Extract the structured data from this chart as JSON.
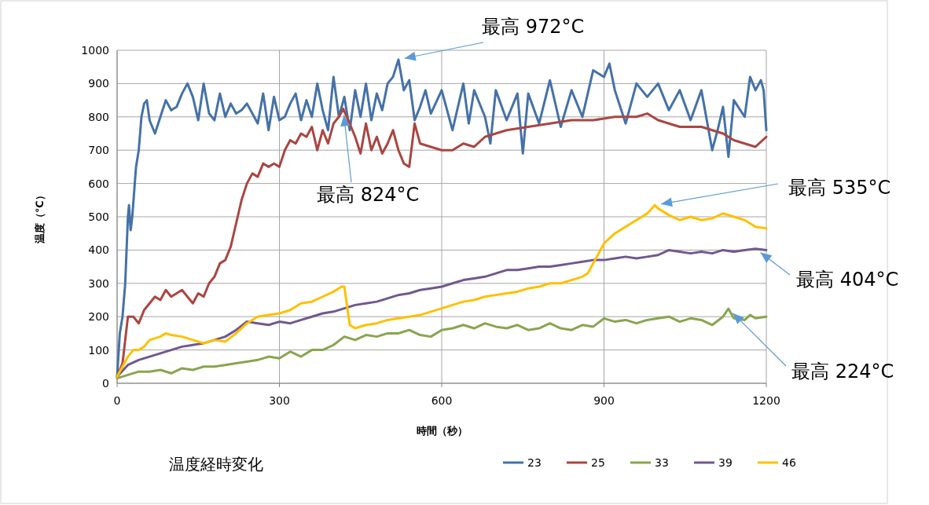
{
  "chart_data": {
    "type": "line",
    "title": "温度経時変化",
    "xlabel": "時間（秒）",
    "ylabel": "温度（℃）",
    "xlim": [
      0,
      1200
    ],
    "xticks": [
      0,
      300,
      600,
      900,
      1200
    ],
    "ylim": [
      0,
      1000
    ],
    "yticks": [
      0,
      100,
      200,
      300,
      400,
      500,
      600,
      700,
      800,
      900,
      1000
    ],
    "grid": true,
    "legend": "bottom",
    "marker": "none",
    "line_style": "solid",
    "series": [
      {
        "name": "23",
        "color": "#4572a7",
        "x": [
          0,
          5,
          10,
          15,
          20,
          22,
          25,
          28,
          35,
          40,
          45,
          50,
          55,
          60,
          70,
          80,
          90,
          100,
          110,
          120,
          130,
          140,
          150,
          160,
          170,
          180,
          190,
          200,
          210,
          220,
          230,
          240,
          250,
          260,
          270,
          280,
          290,
          300,
          310,
          320,
          330,
          340,
          350,
          360,
          370,
          380,
          390,
          400,
          410,
          420,
          430,
          440,
          450,
          460,
          470,
          480,
          490,
          500,
          510,
          520,
          530,
          540,
          550,
          560,
          570,
          580,
          600,
          610,
          620,
          640,
          650,
          660,
          680,
          690,
          700,
          720,
          740,
          750,
          760,
          780,
          800,
          820,
          840,
          860,
          880,
          900,
          910,
          920,
          940,
          960,
          980,
          1000,
          1020,
          1040,
          1060,
          1080,
          1100,
          1110,
          1120,
          1130,
          1140,
          1160,
          1170,
          1180,
          1190,
          1195,
          1200
        ],
        "values": [
          20,
          150,
          200,
          300,
          500,
          535,
          460,
          500,
          650,
          700,
          800,
          840,
          850,
          790,
          750,
          800,
          850,
          820,
          830,
          870,
          900,
          860,
          790,
          900,
          810,
          790,
          870,
          800,
          840,
          810,
          820,
          840,
          810,
          780,
          870,
          760,
          860,
          790,
          800,
          840,
          870,
          790,
          850,
          800,
          900,
          820,
          760,
          920,
          800,
          860,
          760,
          880,
          800,
          900,
          790,
          870,
          820,
          900,
          920,
          972,
          880,
          910,
          790,
          830,
          880,
          810,
          880,
          820,
          760,
          900,
          780,
          880,
          800,
          720,
          880,
          790,
          870,
          690,
          870,
          780,
          910,
          770,
          880,
          800,
          940,
          920,
          960,
          880,
          780,
          900,
          860,
          900,
          820,
          880,
          790,
          880,
          700,
          760,
          830,
          680,
          850,
          800,
          920,
          880,
          910,
          880,
          760
        ]
      },
      {
        "name": "25",
        "color": "#aa4643",
        "x": [
          0,
          10,
          20,
          30,
          40,
          50,
          60,
          70,
          80,
          90,
          100,
          110,
          120,
          130,
          140,
          150,
          160,
          170,
          180,
          190,
          200,
          210,
          220,
          230,
          240,
          250,
          260,
          270,
          280,
          290,
          300,
          310,
          320,
          330,
          340,
          350,
          360,
          370,
          380,
          390,
          400,
          410,
          418,
          430,
          440,
          450,
          460,
          470,
          480,
          490,
          500,
          510,
          520,
          530,
          540,
          550,
          560,
          580,
          600,
          620,
          640,
          660,
          680,
          700,
          720,
          760,
          800,
          840,
          880,
          920,
          960,
          980,
          1000,
          1040,
          1080,
          1120,
          1140,
          1160,
          1180,
          1200
        ],
        "values": [
          20,
          60,
          200,
          200,
          180,
          220,
          240,
          260,
          250,
          280,
          260,
          270,
          280,
          260,
          240,
          270,
          260,
          300,
          320,
          360,
          370,
          410,
          480,
          550,
          600,
          630,
          620,
          660,
          650,
          660,
          650,
          700,
          730,
          720,
          750,
          740,
          770,
          700,
          760,
          720,
          780,
          800,
          824,
          780,
          740,
          690,
          780,
          700,
          740,
          690,
          720,
          760,
          700,
          660,
          650,
          780,
          720,
          710,
          700,
          700,
          720,
          710,
          740,
          750,
          760,
          770,
          780,
          790,
          790,
          800,
          800,
          810,
          790,
          770,
          770,
          750,
          730,
          720,
          710,
          740
        ]
      },
      {
        "name": "33",
        "color": "#89a54e",
        "x": [
          0,
          20,
          40,
          60,
          80,
          100,
          120,
          140,
          160,
          180,
          200,
          220,
          240,
          260,
          280,
          300,
          320,
          340,
          360,
          380,
          400,
          420,
          440,
          460,
          480,
          500,
          520,
          540,
          560,
          580,
          600,
          620,
          640,
          660,
          680,
          700,
          720,
          740,
          760,
          780,
          800,
          820,
          840,
          860,
          880,
          900,
          920,
          940,
          960,
          980,
          1000,
          1020,
          1040,
          1060,
          1080,
          1100,
          1120,
          1130,
          1140,
          1160,
          1170,
          1180,
          1200
        ],
        "values": [
          15,
          25,
          35,
          35,
          40,
          30,
          45,
          40,
          50,
          50,
          55,
          60,
          65,
          70,
          80,
          75,
          95,
          80,
          100,
          100,
          115,
          140,
          130,
          145,
          140,
          150,
          150,
          160,
          145,
          140,
          160,
          165,
          175,
          165,
          180,
          170,
          165,
          175,
          160,
          165,
          180,
          165,
          160,
          175,
          170,
          195,
          185,
          190,
          180,
          190,
          195,
          200,
          185,
          195,
          190,
          175,
          200,
          224,
          195,
          190,
          205,
          195,
          200
        ]
      },
      {
        "name": "39",
        "color": "#71588f",
        "x": [
          0,
          20,
          40,
          60,
          80,
          100,
          120,
          140,
          160,
          180,
          200,
          220,
          240,
          260,
          280,
          300,
          320,
          340,
          360,
          380,
          400,
          420,
          440,
          460,
          480,
          500,
          520,
          540,
          560,
          580,
          600,
          620,
          640,
          660,
          680,
          700,
          720,
          740,
          760,
          780,
          800,
          820,
          840,
          860,
          880,
          900,
          920,
          940,
          960,
          980,
          1000,
          1020,
          1040,
          1060,
          1080,
          1100,
          1120,
          1140,
          1160,
          1180,
          1200
        ],
        "values": [
          20,
          55,
          70,
          80,
          90,
          100,
          110,
          115,
          120,
          130,
          140,
          160,
          185,
          180,
          175,
          185,
          180,
          190,
          200,
          210,
          215,
          225,
          235,
          240,
          245,
          255,
          265,
          270,
          280,
          285,
          290,
          300,
          310,
          315,
          320,
          330,
          340,
          340,
          345,
          350,
          350,
          355,
          360,
          365,
          370,
          370,
          375,
          380,
          375,
          380,
          385,
          400,
          395,
          390,
          395,
          390,
          400,
          395,
          400,
          404,
          400
        ]
      },
      {
        "name": "46",
        "color": "#ffc000",
        "x": [
          0,
          10,
          20,
          30,
          40,
          50,
          60,
          80,
          90,
          100,
          120,
          140,
          160,
          180,
          200,
          220,
          240,
          260,
          280,
          300,
          320,
          340,
          360,
          380,
          400,
          415,
          420,
          430,
          440,
          460,
          480,
          500,
          520,
          540,
          560,
          580,
          600,
          620,
          640,
          660,
          680,
          700,
          720,
          740,
          760,
          780,
          800,
          820,
          840,
          860,
          870,
          880,
          890,
          900,
          920,
          940,
          960,
          980,
          994,
          1000,
          1020,
          1040,
          1060,
          1080,
          1100,
          1120,
          1140,
          1160,
          1180,
          1200
        ],
        "values": [
          20,
          50,
          80,
          100,
          100,
          110,
          130,
          140,
          150,
          145,
          140,
          130,
          120,
          130,
          125,
          150,
          180,
          200,
          205,
          210,
          220,
          240,
          245,
          260,
          275,
          290,
          290,
          175,
          165,
          175,
          180,
          190,
          195,
          200,
          205,
          215,
          225,
          235,
          245,
          250,
          260,
          265,
          270,
          275,
          285,
          290,
          300,
          300,
          310,
          320,
          330,
          360,
          390,
          420,
          450,
          470,
          490,
          510,
          535,
          525,
          505,
          490,
          500,
          490,
          495,
          510,
          500,
          490,
          470,
          465
        ]
      }
    ],
    "annotations": [
      {
        "text": "最高 972°C",
        "x": 520,
        "y": 972
      },
      {
        "text": "最高 824°C",
        "x": 418,
        "y": 824
      },
      {
        "text": "最高 535°C",
        "x": 994,
        "y": 535
      },
      {
        "text": "最高 404°C",
        "x": 1180,
        "y": 404
      },
      {
        "text": "最高 224°C",
        "x": 1130,
        "y": 224
      }
    ]
  }
}
